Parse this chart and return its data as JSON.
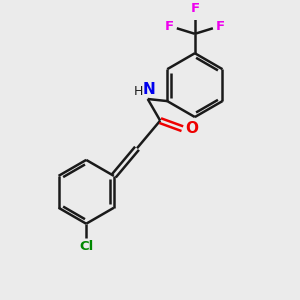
{
  "background_color": "#ebebeb",
  "atom_colors": {
    "C": "#1a1a1a",
    "N": "#0000ee",
    "O": "#ee0000",
    "F": "#ee00ee",
    "Cl": "#008800",
    "H": "#1a1a1a"
  },
  "bond_color": "#1a1a1a",
  "bond_lw": 1.8,
  "figsize": [
    3.0,
    3.0
  ],
  "dpi": 100,
  "xlim": [
    0,
    10
  ],
  "ylim": [
    0,
    10
  ]
}
